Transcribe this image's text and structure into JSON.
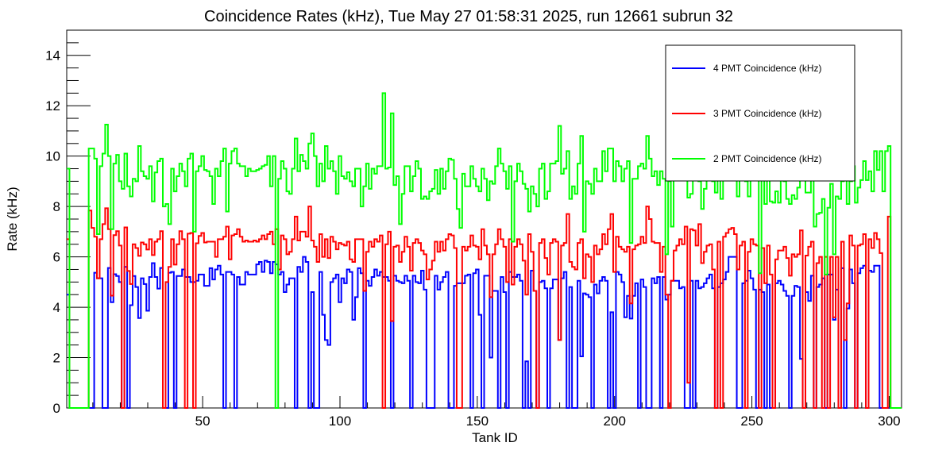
{
  "chart_data": {
    "type": "line",
    "style": "step-histogram",
    "title": "Coincidence Rates (kHz), Tue May 27 01:58:31 2025, run 12661 subrun 32",
    "xlabel": "Tank ID",
    "ylabel": "Rate (kHz)",
    "xlim": [
      0.5,
      304.5
    ],
    "ylim": [
      0,
      15
    ],
    "x_major_ticks": [
      50,
      100,
      150,
      200,
      250,
      300
    ],
    "y_major_ticks": [
      0,
      2,
      4,
      6,
      8,
      10,
      12,
      14
    ],
    "grid": false,
    "legend_position": "top-right",
    "bin_start": 1,
    "series": [
      {
        "name": "4 PMT Coincidence (kHz)",
        "color": "#0000ff",
        "values": [
          4.5,
          0,
          0,
          0,
          0,
          0,
          0,
          0,
          0,
          0,
          5.37,
          5.15,
          5.15,
          0,
          0,
          5.56,
          4.2,
          5.31,
          5.24,
          5.0,
          0,
          5.6,
          0,
          4.08,
          5.24,
          4.8,
          3.57,
          5.15,
          4.92,
          3.86,
          5.2,
          5.75,
          5.2,
          4.74,
          5.56,
          0,
          0,
          5.37,
          5.4,
          0,
          5.24,
          5.24,
          5.5,
          5.2,
          5.2,
          5.0,
          5.0,
          5.05,
          5.3,
          5.3,
          4.85,
          4.85,
          5.55,
          5.1,
          5.5,
          5.65,
          5.3,
          0,
          5.4,
          5.4,
          5.3,
          0,
          5.2,
          4.9,
          4.9,
          5.4,
          5.3,
          5.3,
          5.3,
          5.7,
          5.8,
          5.4,
          5.85,
          5.8,
          5.35,
          5.8,
          5.7,
          5.3,
          5.4,
          4.6,
          4.9,
          5.15,
          5.15,
          0,
          5.6,
          5.4,
          6.0,
          5.8,
          0,
          4.6,
          0,
          0,
          5.4,
          3.7,
          2.7,
          2.5,
          5.0,
          5.15,
          5.3,
          4.2,
          5.15,
          4.95,
          5.5,
          5.4,
          3.5,
          4.4,
          5.55,
          5.35,
          0,
          5.05,
          4.85,
          5.2,
          5.5,
          5.25,
          5.4,
          5.2,
          5.2,
          5.05,
          0,
          5.25,
          5.05,
          5.0,
          4.95,
          5.25,
          5.05,
          0,
          5.25,
          5.0,
          4.95,
          5.45,
          4.7,
          0,
          0,
          0,
          5.25,
          4.7,
          5.0,
          5.2,
          5.4,
          0,
          0,
          4.85,
          4.95,
          4.95,
          4.95,
          5.25,
          5.3,
          0,
          5.35,
          5.5,
          3.7,
          0,
          5.25,
          5.25,
          2.0,
          4.65,
          4.65,
          0,
          5.2,
          4.6,
          0,
          5.4,
          5.2,
          5.2,
          5.3,
          5.05,
          0,
          1.85,
          0,
          5.45,
          4.65,
          0,
          5.0,
          5.05,
          4.75,
          0,
          4.75,
          5.1,
          5.1,
          2.7,
          5.15,
          5.4,
          0,
          4.8,
          0,
          0,
          5.05,
          2.05,
          4.55,
          4.5,
          4.4,
          0,
          4.9,
          4.55,
          5.05,
          5.2,
          5.05,
          0,
          3.8,
          0,
          5.4,
          5.3,
          5.0,
          3.6,
          4.45,
          3.55,
          4.45,
          4.95,
          0,
          5.1,
          4.8,
          0,
          0,
          5.15,
          4.95,
          5.2,
          0,
          5.2,
          4.3,
          4.5,
          5.05,
          5.05,
          5.05,
          4.75,
          4.8,
          0,
          0,
          5.05,
          0,
          5.05,
          4.75,
          4.8,
          4.95,
          5.15,
          5.3,
          4.75,
          0,
          4.8,
          4.95,
          5.1,
          5.4,
          6.0,
          6.0,
          6.0,
          0,
          0,
          4.95,
          5.05,
          5.45,
          5.15,
          4.7,
          0,
          4.7,
          4.6,
          0,
          4.9,
          0,
          0,
          4.95,
          5.05,
          4.9,
          4.65,
          4.45,
          0,
          4.45,
          4.85,
          4.8,
          1.95,
          0,
          4.6,
          4.25,
          5.25,
          0,
          4.8,
          4.9,
          5.15,
          0,
          5.3,
          5.3,
          3.5,
          4.7,
          0,
          5.55,
          0,
          3.95,
          5.5,
          4.95,
          0,
          5.35,
          5.55,
          5.65,
          0,
          5.45,
          5.4,
          5.65,
          5.65,
          0,
          0,
          0,
          0,
          0,
          0,
          0,
          0
        ]
      },
      {
        "name": "3 PMT Coincidence (kHz)",
        "color": "#ff0000",
        "values": [
          6.7,
          0,
          0,
          0,
          0,
          0,
          0,
          0,
          7.84,
          7.15,
          6.8,
          5.15,
          6.7,
          7.3,
          7.93,
          7.1,
          4.46,
          6.86,
          7.02,
          6.45,
          0,
          7.17,
          5.44,
          4.92,
          6.5,
          6.35,
          6.04,
          6.57,
          6.5,
          6.29,
          6.7,
          6.07,
          6.6,
          6.7,
          7.02,
          0,
          5.0,
          5.6,
          6.7,
          5.69,
          6.5,
          7.02,
          6.7,
          0,
          6.92,
          6.95,
          0,
          6.54,
          6.83,
          6.95,
          6.57,
          6.6,
          6.6,
          6.6,
          6.0,
          6.7,
          6.7,
          6.8,
          7.2,
          5.9,
          6.85,
          6.9,
          7.1,
          6.8,
          6.6,
          6.65,
          6.6,
          6.6,
          6.65,
          6.6,
          6.7,
          6.85,
          6.7,
          6.9,
          7.0,
          6.5,
          7.1,
          5.5,
          6.85,
          6.7,
          6.1,
          6.2,
          6.7,
          7.6,
          6.65,
          7.0,
          7.0,
          6.8,
          8.0,
          6.65,
          6.4,
          5.8,
          6.9,
          6.0,
          6.7,
          5.95,
          6.8,
          6.6,
          6.3,
          6.55,
          6.5,
          6.45,
          6.6,
          5.9,
          5.8,
          6.7,
          6.7,
          6.7,
          4.65,
          6.2,
          6.6,
          6.4,
          6.7,
          6.6,
          6.85,
          0,
          6.5,
          7.0,
          3.45,
          6.4,
          6.45,
          5.8,
          6.2,
          6.8,
          6.4,
          5.45,
          6.55,
          6.7,
          6.55,
          6.25,
          6.1,
          5.1,
          5.5,
          5.85,
          6.6,
          6.2,
          6.6,
          6.25,
          6.7,
          6.9,
          6.85,
          6.35,
          0,
          0,
          6.4,
          6.25,
          6.4,
          6.85,
          6.45,
          6.4,
          5.9,
          7.1,
          6.45,
          6.1,
          4.4,
          6.1,
          6.5,
          7.1,
          6.7,
          6.4,
          5.0,
          6.7,
          4.9,
          6.4,
          6.7,
          6.5,
          5.85,
          4.5,
          6.9,
          6.2,
          4.65,
          0,
          6.55,
          6.7,
          5.95,
          5.3,
          6.55,
          6.7,
          6.6,
          2.7,
          6.45,
          6.55,
          7.7,
          5.8,
          5.6,
          5.5,
          6.55,
          6.7,
          5.15,
          6.1,
          6.0,
          5.0,
          6.45,
          6.1,
          6.3,
          6.9,
          6.5,
          7.1,
          7.7,
          5.4,
          6.8,
          6.4,
          6.3,
          6.2,
          6.4,
          4.15,
          6.3,
          6.45,
          6.5,
          6.8,
          6.55,
          8.0,
          7.5,
          6.6,
          6.55,
          6.55,
          5.4,
          6.4,
          4.5,
          0,
          5.05,
          6.25,
          6.45,
          6.7,
          6.5,
          7.2,
          1.0,
          7.1,
          7.05,
          6.45,
          7.3,
          5.75,
          6.2,
          6.45,
          6.5,
          5.5,
          0,
          6.6,
          0,
          6.8,
          6.95,
          7.1,
          7.15,
          6.9,
          5.5,
          6.45,
          6.6,
          0,
          6.2,
          6.7,
          6.5,
          6.45,
          0,
          6.35,
          4.95,
          6.45,
          5.3,
          0,
          5.9,
          6.25,
          6.25,
          6.4,
          5.95,
          5.25,
          6.1,
          6.0,
          6.1,
          7.05,
          0,
          6.05,
          6.4,
          6.6,
          0,
          5.75,
          6.0,
          0,
          6.0,
          0,
          6.0,
          3.6,
          6.0,
          0,
          6.6,
          2.7,
          4.15,
          6.85,
          6.45,
          0,
          6.45,
          6.5,
          6.9,
          0,
          6.7,
          6.35,
          6.95,
          6.7,
          6.15,
          0,
          0,
          7.6,
          0,
          0,
          0,
          0
        ]
      },
      {
        "name": "2 PMT Coincidence (kHz)",
        "color": "#00ff00",
        "values": [
          9.5,
          0,
          0,
          0,
          0,
          0,
          0,
          0,
          10.3,
          10.3,
          9.9,
          6.9,
          9.6,
          10.1,
          11.25,
          10.0,
          7.1,
          9.7,
          10.05,
          9.0,
          8.7,
          10.1,
          8.8,
          8.4,
          9.1,
          9.0,
          10.4,
          9.4,
          9.2,
          9.1,
          9.6,
          8.2,
          9.35,
          9.8,
          9.9,
          8.0,
          8.1,
          7.3,
          9.5,
          8.6,
          9.2,
          9.7,
          9.4,
          8.8,
          9.9,
          10.1,
          7.0,
          9.4,
          9.6,
          10.0,
          9.45,
          9.4,
          9.2,
          8.1,
          9.5,
          9.2,
          9.8,
          10.3,
          7.8,
          9.7,
          10.2,
          10.3,
          9.7,
          9.6,
          9.6,
          9.2,
          9.5,
          9.4,
          9.4,
          9.45,
          9.5,
          9.6,
          9.65,
          10.0,
          8.8,
          10.0,
          0,
          9.1,
          9.8,
          9.5,
          8.6,
          8.5,
          9.5,
          10.7,
          9.4,
          10.05,
          9.8,
          9.5,
          10.5,
          10.9,
          10.0,
          8.8,
          9.7,
          9.0,
          10.4,
          9.5,
          9.8,
          9.4,
          8.5,
          10.0,
          9.2,
          9.1,
          9.36,
          9.0,
          8.8,
          9.5,
          9.5,
          8.0,
          8.8,
          9.7,
          8.7,
          9.5,
          9.3,
          9.6,
          9.6,
          12.5,
          9.5,
          9.55,
          11.7,
          8.85,
          9.2,
          7.3,
          8.5,
          9.6,
          9.6,
          8.6,
          9.2,
          9.8,
          9.5,
          8.3,
          8.4,
          8.3,
          8.6,
          8.7,
          9.45,
          8.5,
          9.5,
          8.7,
          9.4,
          9.9,
          9.85,
          9.1,
          7.9,
          7.15,
          9.3,
          8.8,
          8.8,
          9.6,
          9.1,
          8.8,
          8.6,
          9.5,
          9.1,
          8.25,
          9.0,
          8.9,
          9.6,
          10.3,
          9.7,
          9.4,
          8.7,
          9.6,
          6.6,
          9.0,
          9.7,
          9.4,
          8.9,
          8.7,
          7.8,
          8.8,
          8.5,
          8.0,
          9.5,
          9.7,
          8.3,
          8.6,
          9.7,
          9.7,
          9.8,
          11.2,
          9.3,
          9.5,
          10.2,
          8.3,
          8.8,
          8.5,
          9.7,
          10.8,
          7.0,
          9.0,
          8.9,
          8.5,
          9.5,
          9.0,
          9.0,
          10.2,
          9.4,
          10.3,
          10.3,
          9.0,
          9.8,
          9.6,
          9.0,
          9.5,
          9.8,
          6.55,
          9.1,
          9.1,
          9.6,
          9.7,
          9.5,
          10.8,
          9.9,
          9.2,
          9.4,
          8.85,
          9.4,
          9.1,
          6.1,
          9.0,
          7.2,
          9.5,
          9.5,
          9.5,
          9.5,
          9.4,
          8.35,
          8.5,
          9.5,
          9.5,
          9.0,
          7.9,
          8.7,
          9.5,
          9.5,
          9.0,
          8.55,
          9.6,
          8.3,
          9.6,
          9.6,
          9.5,
          9.5,
          9.4,
          8.4,
          9.4,
          9.5,
          9.0,
          8.4,
          9.6,
          9.5,
          9.4,
          5.35,
          9.5,
          8.1,
          9.5,
          8.2,
          8.15,
          8.6,
          8.15,
          9.4,
          9.0,
          8.3,
          8.1,
          8.45,
          8.3,
          8.75,
          9.4,
          9.4,
          8.55,
          8.55,
          9.05,
          7.2,
          7.7,
          7.75,
          8.3,
          5.3,
          7.95,
          8.9,
          6.1,
          8.4,
          8.3,
          9.0,
          9.5,
          8.1,
          9.0,
          9.6,
          8.15,
          8.75,
          9.05,
          9.8,
          9.05,
          9.4,
          8.6,
          10.2,
          9.45,
          10.2,
          8.6,
          10.2,
          10.4,
          0,
          0,
          0,
          0
        ]
      }
    ]
  }
}
